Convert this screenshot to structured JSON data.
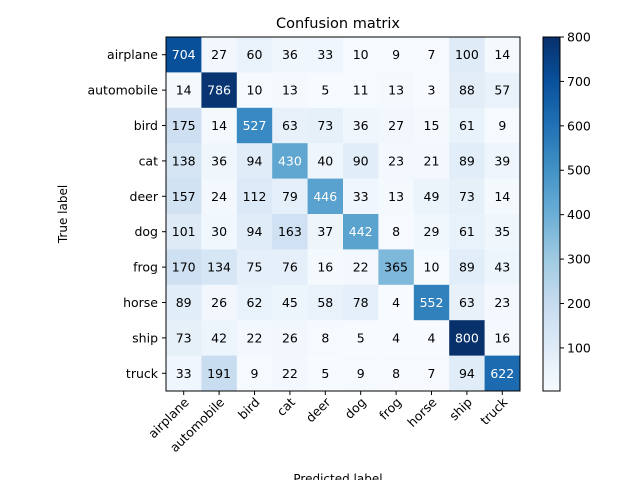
{
  "chart_data": {
    "type": "heatmap",
    "title": "Confusion matrix",
    "xlabel": "Predicted label",
    "ylabel": "True label",
    "x_categories": [
      "airplane",
      "automobile",
      "bird",
      "cat",
      "deer",
      "dog",
      "frog",
      "horse",
      "ship",
      "truck"
    ],
    "y_categories": [
      "airplane",
      "automobile",
      "bird",
      "cat",
      "deer",
      "dog",
      "frog",
      "horse",
      "ship",
      "truck"
    ],
    "values": [
      [
        704,
        27,
        60,
        36,
        33,
        10,
        9,
        7,
        100,
        14
      ],
      [
        14,
        786,
        10,
        13,
        5,
        11,
        13,
        3,
        88,
        57
      ],
      [
        175,
        14,
        527,
        63,
        73,
        36,
        27,
        15,
        61,
        9
      ],
      [
        138,
        36,
        94,
        430,
        40,
        90,
        23,
        21,
        89,
        39
      ],
      [
        157,
        24,
        112,
        79,
        446,
        33,
        13,
        49,
        73,
        14
      ],
      [
        101,
        30,
        94,
        163,
        37,
        442,
        8,
        29,
        61,
        35
      ],
      [
        170,
        134,
        75,
        76,
        16,
        22,
        365,
        10,
        89,
        43
      ],
      [
        89,
        26,
        62,
        45,
        58,
        78,
        4,
        552,
        63,
        23
      ],
      [
        73,
        42,
        22,
        26,
        8,
        5,
        4,
        4,
        800,
        16
      ],
      [
        33,
        191,
        9,
        22,
        5,
        9,
        8,
        7,
        94,
        622
      ]
    ],
    "colormap": "Blues",
    "color_range": [
      3,
      800
    ],
    "colorbar_ticks": [
      100,
      200,
      300,
      400,
      500,
      600,
      700,
      800
    ],
    "x_tick_rotation_deg": 45,
    "grid": false
  }
}
